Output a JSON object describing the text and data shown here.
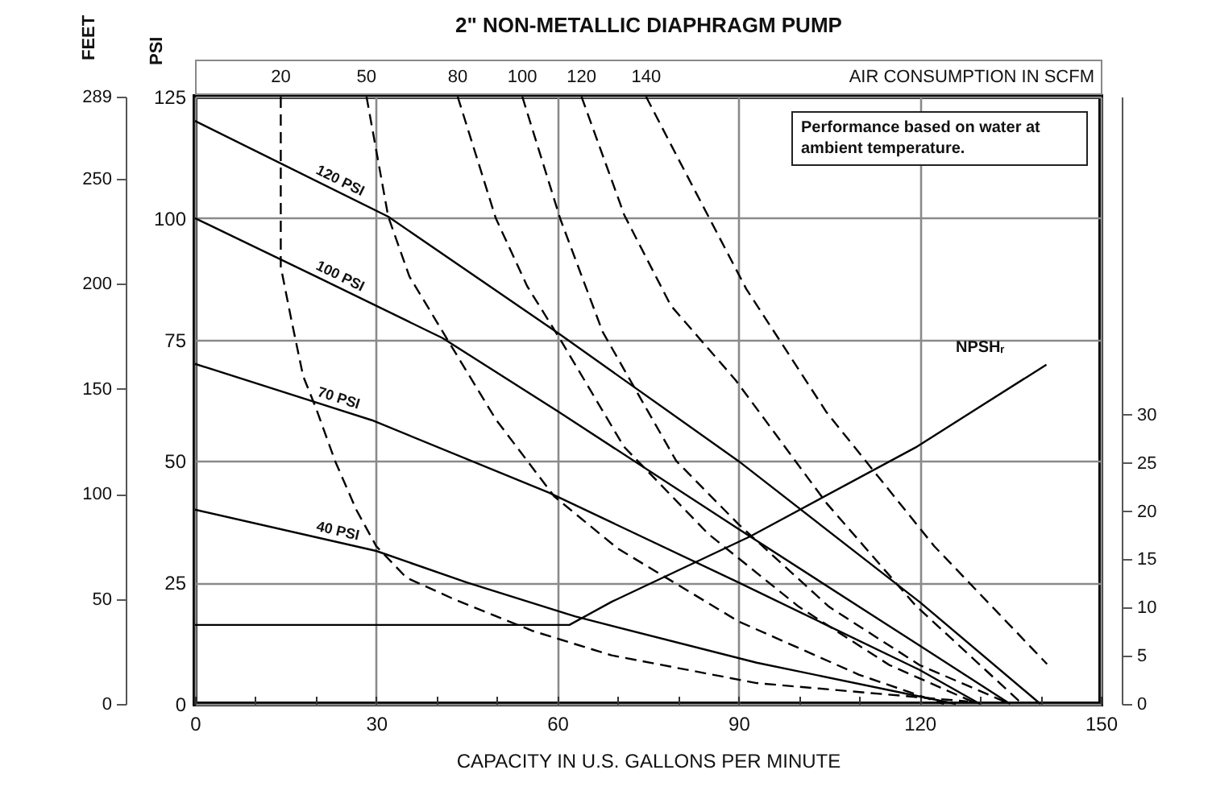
{
  "chart_data": {
    "type": "line",
    "title": "2\" NON-METALLIC DIAPHRAGM PUMP",
    "xlabel": "CAPACITY IN U.S. GALLONS PER MINUTE",
    "ylabel": "PSI",
    "y3label": "FEET",
    "annotations": [
      "AIR CONSUMPTION IN SCFM",
      "Performance based on water at ambient temperature."
    ],
    "xlim": [
      0,
      150
    ],
    "xticks": [
      0,
      {
        "value": 10,
        "label": null
      },
      {
        "value": 20,
        "label": null
      },
      30,
      {
        "value": 40,
        "label": null
      },
      {
        "value": 50,
        "label": null
      },
      60,
      {
        "value": 70,
        "label": null
      },
      {
        "value": 80,
        "label": null
      },
      90,
      {
        "value": 100,
        "label": null
      },
      {
        "value": 110,
        "label": null
      },
      120,
      {
        "value": 130,
        "label": null
      },
      {
        "value": 140,
        "label": null
      },
      150
    ],
    "ylim": [
      0,
      125
    ],
    "yticks": [
      0,
      25,
      50,
      75,
      100,
      125
    ],
    "y2lim": [
      0,
      63
    ],
    "y2ticks": [
      0,
      5,
      10,
      15,
      20,
      25,
      30
    ],
    "y3lim": [
      0,
      289
    ],
    "y3ticks": [
      0,
      50,
      100,
      150,
      200,
      250,
      289
    ],
    "grid": true,
    "series": [
      {
        "name": "120 PSI",
        "color": "#000000",
        "line_style": "solid",
        "x": [
          0,
          32,
          60.5,
          90,
          120,
          140
        ],
        "values": [
          120,
          100.3,
          76,
          50,
          21,
          0
        ]
      },
      {
        "name": "100 PSI",
        "color": "#000000",
        "line_style": "solid",
        "x": [
          0,
          20,
          41,
          60,
          90,
          120,
          135
        ],
        "values": [
          100,
          88,
          75.3,
          60.3,
          36,
          12,
          0
        ]
      },
      {
        "name": "70 PSI",
        "color": "#000000",
        "line_style": "solid",
        "x": [
          0,
          29.3,
          58.6,
          90,
          120,
          130
        ],
        "values": [
          70,
          58.4,
          43.5,
          25,
          7,
          0
        ]
      },
      {
        "name": "40 PSI",
        "color": "#000000",
        "line_style": "solid",
        "x": [
          0,
          30,
          45,
          63,
          93,
          126
        ],
        "values": [
          40,
          31.5,
          25,
          18,
          8.5,
          0
        ]
      },
      {
        "name": "20",
        "color": "#000000",
        "line_style": "dashed",
        "x": [
          14.2,
          14.2,
          16,
          17.9,
          20,
          23.2,
          26.7,
          30,
          35,
          43,
          56,
          69,
          93,
          128
        ],
        "values": [
          125,
          90,
          78.8,
          67.5,
          61,
          50,
          40,
          32.5,
          26,
          21.5,
          15,
          10,
          4.3,
          0.5
        ]
      },
      {
        "name": "50",
        "color": "#000000",
        "line_style": "dashed",
        "x": [
          28.4,
          32,
          35.5,
          41.8,
          49.8,
          59.5,
          70,
          90,
          110,
          124
        ],
        "values": [
          125,
          100.3,
          88,
          75,
          58.6,
          42.7,
          32,
          17,
          6,
          0
        ]
      },
      {
        "name": "80",
        "color": "#000000",
        "line_style": "dashed",
        "x": [
          43.5,
          49.8,
          55,
          60.5,
          71,
          85,
          100,
          115,
          129.6
        ],
        "values": [
          125,
          100,
          86,
          75,
          53,
          35,
          20,
          8,
          0
        ]
      },
      {
        "name": "100",
        "color": "#000000",
        "line_style": "dashed",
        "x": [
          54.2,
          60.5,
          67.5,
          79.7,
          90,
          105,
          120,
          135
        ],
        "values": [
          125,
          99.8,
          76.6,
          50,
          37,
          20,
          8,
          0
        ]
      },
      {
        "name": "120",
        "color": "#000000",
        "line_style": "dashed",
        "x": [
          64,
          71.1,
          78.8,
          89.5,
          104.6,
          119.3,
          137
        ],
        "values": [
          125,
          100.6,
          82,
          66.7,
          41.3,
          20.3,
          0
        ]
      },
      {
        "name": "140",
        "color": "#000000",
        "line_style": "dashed",
        "x": [
          74.7,
          79.7,
          91.3,
          104.6,
          122.4,
          141.1
        ],
        "values": [
          125,
          113,
          85.4,
          60,
          32.5,
          8.2
        ]
      },
      {
        "name": "NPSHᵣ",
        "color": "#000000",
        "line_style": "solid",
        "axis": "y2",
        "x": [
          0,
          62,
          69,
          92,
          119.3,
          141
        ],
        "values": [
          8.2,
          8.2,
          10.6,
          17.4,
          26.6,
          35.2
        ]
      }
    ]
  }
}
